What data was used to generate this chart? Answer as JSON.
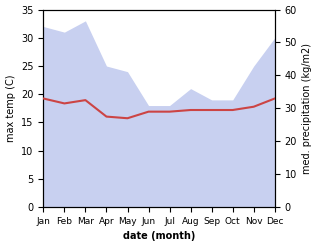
{
  "months": [
    "Jan",
    "Feb",
    "Mar",
    "Apr",
    "May",
    "Jun",
    "Jul",
    "Aug",
    "Sep",
    "Oct",
    "Nov",
    "Dec"
  ],
  "x": [
    0,
    1,
    2,
    3,
    4,
    5,
    6,
    7,
    8,
    9,
    10,
    11
  ],
  "temperature": [
    33.0,
    31.5,
    32.5,
    27.5,
    27.0,
    29.0,
    29.0,
    29.5,
    29.5,
    29.5,
    30.5,
    33.0
  ],
  "precipitation": [
    32.0,
    31.0,
    33.0,
    25.0,
    24.0,
    18.0,
    18.0,
    21.0,
    19.0,
    19.0,
    25.0,
    30.0
  ],
  "temp_color": "#cc4444",
  "precip_fill_color": "#c8d0f0",
  "ylabel_left": "max temp (C)",
  "ylabel_right": "med. precipitation (kg/m2)",
  "xlabel": "date (month)",
  "ylim_left": [
    0,
    35
  ],
  "ylim_right": [
    0,
    60
  ],
  "yticks_left": [
    0,
    5,
    10,
    15,
    20,
    25,
    30,
    35
  ],
  "yticks_right": [
    0,
    10,
    20,
    30,
    40,
    50,
    60
  ],
  "background_color": "#ffffff"
}
